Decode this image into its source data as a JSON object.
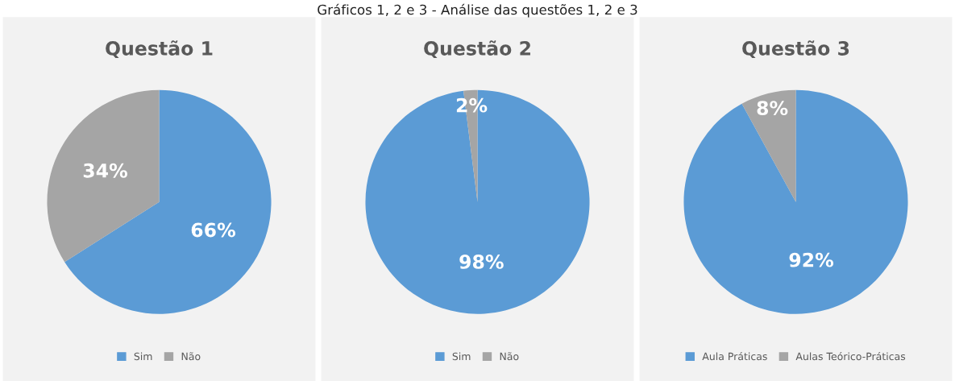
{
  "chart_data": [
    {
      "type": "pie",
      "title": "Questão 1",
      "categories": [
        "Sim",
        "Não"
      ],
      "values": [
        66,
        34
      ],
      "value_labels": [
        "66%",
        "34%"
      ],
      "colors": [
        "#5b9bd5",
        "#a5a5a5"
      ],
      "legend": "bottom",
      "annotations": [
        "Gráficos 1, 2 e 3 - Análise das questões 1, 2 e 3"
      ]
    },
    {
      "type": "pie",
      "title": "Questão 2",
      "categories": [
        "Sim",
        "Não"
      ],
      "values": [
        98,
        2
      ],
      "value_labels": [
        "98%",
        "2%"
      ],
      "colors": [
        "#5b9bd5",
        "#a5a5a5"
      ],
      "legend": "bottom"
    },
    {
      "type": "pie",
      "title": "Questão 3",
      "categories": [
        "Aula Práticas",
        "Aulas Teórico-Práticas"
      ],
      "values": [
        92,
        8
      ],
      "value_labels": [
        "92%",
        "8%"
      ],
      "colors": [
        "#5b9bd5",
        "#a5a5a5"
      ],
      "legend": "bottom"
    }
  ]
}
